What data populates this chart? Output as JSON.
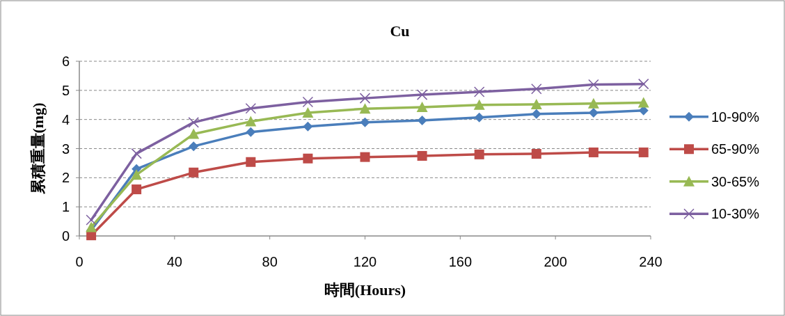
{
  "chart_data": {
    "type": "line",
    "title": "Cu",
    "xlabel": "時間(Hours)",
    "ylabel": "累積重量(mg)",
    "x": [
      5,
      24,
      48,
      72,
      96,
      120,
      144,
      168,
      192,
      216,
      237
    ],
    "xlim": [
      0,
      240
    ],
    "xticks": [
      0,
      40,
      80,
      120,
      160,
      200,
      240
    ],
    "ylim": [
      0,
      6
    ],
    "yticks": [
      0,
      1,
      2,
      3,
      4,
      5,
      6
    ],
    "grid": "y",
    "legend": "right",
    "line_style": "solid",
    "series": [
      {
        "name": "10-90%",
        "color": "#4a7ebb",
        "marker": "diamond",
        "values": [
          0.2,
          2.3,
          3.08,
          3.57,
          3.76,
          3.9,
          3.97,
          4.07,
          4.19,
          4.23,
          4.31
        ]
      },
      {
        "name": "65-90%",
        "color": "#be4b48",
        "marker": "square",
        "values": [
          0.02,
          1.6,
          2.18,
          2.54,
          2.66,
          2.71,
          2.75,
          2.8,
          2.82,
          2.87,
          2.87
        ]
      },
      {
        "name": "30-65%",
        "color": "#98b954",
        "marker": "triangle",
        "values": [
          0.3,
          2.1,
          3.5,
          3.93,
          4.23,
          4.37,
          4.42,
          4.5,
          4.52,
          4.55,
          4.58
        ]
      },
      {
        "name": "10-30%",
        "color": "#7d60a0",
        "marker": "cross",
        "values": [
          0.55,
          2.83,
          3.9,
          4.38,
          4.6,
          4.73,
          4.85,
          4.95,
          5.05,
          5.2,
          5.22
        ]
      }
    ]
  }
}
